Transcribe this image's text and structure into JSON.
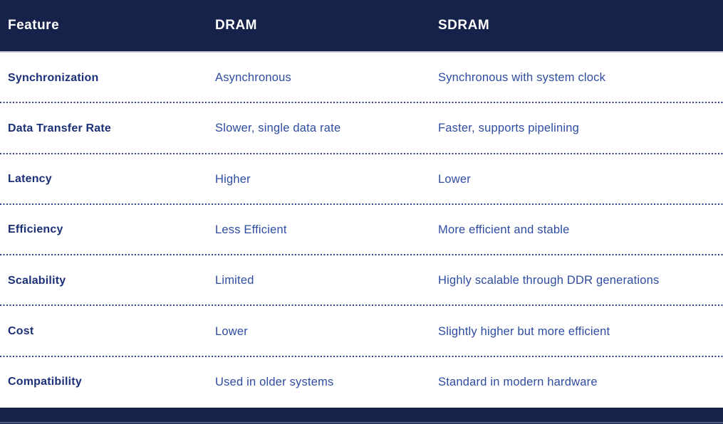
{
  "colors": {
    "header-bg": "#16224A",
    "header-text": "#FFFFFF",
    "header-underline": "#C6CAD8",
    "row-bg": "#FFFFFF",
    "feature-text": "#1C3077",
    "value-text": "#2E4CA0",
    "divider": "#2B3E8C",
    "footer-bg": "#16224A",
    "footer-accent": "#4D5C82"
  },
  "table": {
    "columns": [
      {
        "key": "feature",
        "label": "Feature"
      },
      {
        "key": "dram",
        "label": "DRAM"
      },
      {
        "key": "sdram",
        "label": "SDRAM"
      }
    ],
    "rows": [
      {
        "feature": "Synchronization",
        "dram": "Asynchronous",
        "sdram": "Synchronous with system clock"
      },
      {
        "feature": "Data Transfer Rate",
        "dram": "Slower, single data rate",
        "sdram": "Faster, supports pipelining"
      },
      {
        "feature": "Latency",
        "dram": "Higher",
        "sdram": "Lower"
      },
      {
        "feature": "Efficiency",
        "dram": "Less Efficient",
        "sdram": "More efficient and stable"
      },
      {
        "feature": "Scalability",
        "dram": "Limited",
        "sdram": "Highly scalable through DDR generations"
      },
      {
        "feature": "Cost",
        "dram": "Lower",
        "sdram": "Slightly higher but more efficient"
      },
      {
        "feature": "Compatibility",
        "dram": "Used in older systems",
        "sdram": "Standard in modern hardware"
      }
    ]
  }
}
